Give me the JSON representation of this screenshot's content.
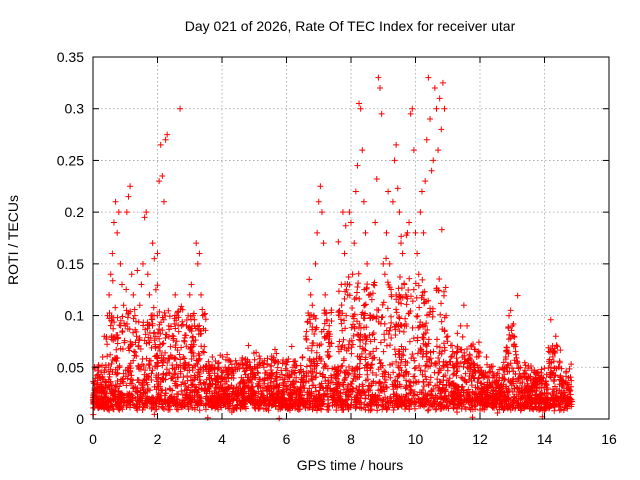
{
  "chart_data": {
    "type": "scatter",
    "title": "Day 021 of 2026, Rate Of TEC Index for receiver utar",
    "xlabel": "GPS time / hours",
    "ylabel": "ROTI / TECUs",
    "xlim": [
      0,
      16
    ],
    "ylim": [
      0,
      0.35
    ],
    "xticks": [
      0,
      2,
      4,
      6,
      8,
      10,
      12,
      14,
      16
    ],
    "xtick_labels": [
      "0",
      "2",
      "4",
      "6",
      "8",
      "10",
      "12",
      "14",
      "16"
    ],
    "yticks": [
      0,
      0.05,
      0.1,
      0.15,
      0.2,
      0.25,
      0.3,
      0.35
    ],
    "ytick_labels": [
      "0",
      "0.05",
      "0.1",
      "0.15",
      "0.2",
      "0.25",
      "0.3",
      "0.35"
    ],
    "grid": true,
    "marker": "plus",
    "color": "#ff0000",
    "series": [
      {
        "name": "ROTI",
        "points": [
          [
            0.05,
            0.03
          ],
          [
            0.1,
            0.02
          ],
          [
            0.15,
            0.05
          ],
          [
            0.2,
            0.04
          ],
          [
            0.25,
            0.025
          ],
          [
            0.3,
            0.06
          ],
          [
            0.35,
            0.08
          ],
          [
            0.4,
            0.05
          ],
          [
            0.45,
            0.1
          ],
          [
            0.5,
            0.12
          ],
          [
            0.55,
            0.14
          ],
          [
            0.6,
            0.16
          ],
          [
            0.65,
            0.19
          ],
          [
            0.7,
            0.21
          ],
          [
            0.75,
            0.18
          ],
          [
            0.8,
            0.2
          ],
          [
            0.85,
            0.15
          ],
          [
            0.9,
            0.13
          ],
          [
            0.95,
            0.11
          ],
          [
            1.0,
            0.09
          ],
          [
            1.05,
            0.2
          ],
          [
            1.1,
            0.215
          ],
          [
            1.15,
            0.225
          ],
          [
            1.2,
            0.14
          ],
          [
            1.25,
            0.12
          ],
          [
            1.3,
            0.1
          ],
          [
            1.35,
            0.08
          ],
          [
            1.4,
            0.07
          ],
          [
            1.45,
            0.11
          ],
          [
            1.5,
            0.13
          ],
          [
            1.55,
            0.15
          ],
          [
            1.6,
            0.195
          ],
          [
            1.65,
            0.2
          ],
          [
            1.7,
            0.14
          ],
          [
            1.75,
            0.12
          ],
          [
            1.8,
            0.1
          ],
          [
            1.85,
            0.17
          ],
          [
            1.9,
            0.155
          ],
          [
            1.95,
            0.125
          ],
          [
            2.0,
            0.16
          ],
          [
            2.05,
            0.23
          ],
          [
            2.1,
            0.265
          ],
          [
            2.15,
            0.235
          ],
          [
            2.2,
            0.21
          ],
          [
            2.25,
            0.27
          ],
          [
            2.3,
            0.275
          ],
          [
            2.35,
            0.09
          ],
          [
            2.4,
            0.07
          ],
          [
            2.45,
            0.06
          ],
          [
            2.5,
            0.08
          ],
          [
            2.55,
            0.12
          ],
          [
            2.6,
            0.1
          ],
          [
            2.65,
            0.05
          ],
          [
            2.7,
            0.3
          ],
          [
            2.75,
            0.09
          ],
          [
            2.8,
            0.06
          ],
          [
            2.85,
            0.05
          ],
          [
            2.9,
            0.09
          ],
          [
            2.95,
            0.1
          ],
          [
            3.0,
            0.12
          ],
          [
            3.05,
            0.13
          ],
          [
            3.1,
            0.1
          ],
          [
            3.15,
            0.09
          ],
          [
            3.2,
            0.17
          ],
          [
            3.25,
            0.15
          ],
          [
            3.3,
            0.16
          ],
          [
            3.35,
            0.12
          ],
          [
            3.4,
            0.1
          ],
          [
            3.45,
            0.07
          ],
          [
            3.5,
            0.05
          ],
          [
            3.6,
            0.04
          ],
          [
            3.7,
            0.06
          ],
          [
            3.8,
            0.03
          ],
          [
            3.9,
            0.05
          ],
          [
            4.0,
            0.04
          ],
          [
            4.1,
            0.05
          ],
          [
            4.2,
            0.03
          ],
          [
            4.3,
            0.04
          ],
          [
            4.4,
            0.05
          ],
          [
            4.5,
            0.03
          ],
          [
            4.6,
            0.04
          ],
          [
            4.7,
            0.035
          ],
          [
            4.8,
            0.05
          ],
          [
            4.9,
            0.03
          ],
          [
            5.0,
            0.04
          ],
          [
            5.1,
            0.045
          ],
          [
            5.2,
            0.03
          ],
          [
            5.3,
            0.05
          ],
          [
            5.4,
            0.04
          ],
          [
            5.5,
            0.035
          ],
          [
            5.6,
            0.03
          ],
          [
            5.7,
            0.045
          ],
          [
            5.8,
            0.04
          ],
          [
            5.9,
            0.035
          ],
          [
            6.0,
            0.03
          ],
          [
            6.1,
            0.04
          ],
          [
            6.2,
            0.05
          ],
          [
            6.3,
            0.04
          ],
          [
            6.4,
            0.045
          ],
          [
            6.5,
            0.06
          ],
          [
            6.6,
            0.08
          ],
          [
            6.7,
            0.1
          ],
          [
            6.75,
            0.12
          ],
          [
            6.8,
            0.11
          ],
          [
            6.85,
            0.1
          ],
          [
            6.9,
            0.15
          ],
          [
            6.95,
            0.18
          ],
          [
            7.0,
            0.21
          ],
          [
            7.05,
            0.225
          ],
          [
            7.1,
            0.2
          ],
          [
            7.15,
            0.17
          ],
          [
            7.2,
            0.12
          ],
          [
            7.25,
            0.08
          ],
          [
            7.3,
            0.06
          ],
          [
            7.4,
            0.04
          ],
          [
            7.5,
            0.05
          ],
          [
            7.6,
            0.07
          ],
          [
            7.7,
            0.13
          ],
          [
            7.75,
            0.2
          ],
          [
            7.8,
            0.16
          ],
          [
            7.85,
            0.1
          ],
          [
            7.9,
            0.12
          ],
          [
            7.95,
            0.2
          ],
          [
            8.0,
            0.19
          ],
          [
            8.05,
            0.14
          ],
          [
            8.1,
            0.17
          ],
          [
            8.15,
            0.22
          ],
          [
            8.2,
            0.245
          ],
          [
            8.25,
            0.305
          ],
          [
            8.3,
            0.3
          ],
          [
            8.35,
            0.26
          ],
          [
            8.4,
            0.21
          ],
          [
            8.45,
            0.18
          ],
          [
            8.5,
            0.15
          ],
          [
            8.55,
            0.12
          ],
          [
            8.6,
            0.1
          ],
          [
            8.7,
            0.13
          ],
          [
            8.75,
            0.19
          ],
          [
            8.8,
            0.232
          ],
          [
            8.85,
            0.33
          ],
          [
            8.9,
            0.32
          ],
          [
            8.95,
            0.295
          ],
          [
            9.0,
            0.15
          ],
          [
            9.05,
            0.14
          ],
          [
            9.1,
            0.18
          ],
          [
            9.15,
            0.22
          ],
          [
            9.2,
            0.15
          ],
          [
            9.25,
            0.12
          ],
          [
            9.3,
            0.21
          ],
          [
            9.35,
            0.25
          ],
          [
            9.4,
            0.265
          ],
          [
            9.45,
            0.223
          ],
          [
            9.5,
            0.2
          ],
          [
            9.55,
            0.17
          ],
          [
            9.6,
            0.16
          ],
          [
            9.65,
            0.13
          ],
          [
            9.7,
            0.12
          ],
          [
            9.75,
            0.18
          ],
          [
            9.8,
            0.19
          ],
          [
            9.85,
            0.295
          ],
          [
            9.9,
            0.3
          ],
          [
            9.95,
            0.26
          ],
          [
            10.0,
            0.18
          ],
          [
            10.05,
            0.16
          ],
          [
            10.1,
            0.14
          ],
          [
            10.15,
            0.2
          ],
          [
            10.2,
            0.22
          ],
          [
            10.25,
            0.18
          ],
          [
            10.3,
            0.23
          ],
          [
            10.35,
            0.27
          ],
          [
            10.4,
            0.33
          ],
          [
            10.45,
            0.29
          ],
          [
            10.5,
            0.24
          ],
          [
            10.55,
            0.25
          ],
          [
            10.6,
            0.32
          ],
          [
            10.65,
            0.3
          ],
          [
            10.7,
            0.26
          ],
          [
            10.75,
            0.31
          ],
          [
            10.8,
            0.28
          ],
          [
            10.85,
            0.325
          ],
          [
            10.9,
            0.3
          ],
          [
            10.95,
            0.1
          ],
          [
            11.0,
            0.08
          ],
          [
            11.1,
            0.06
          ],
          [
            11.2,
            0.05
          ],
          [
            11.3,
            0.07
          ],
          [
            11.4,
            0.09
          ],
          [
            11.5,
            0.11
          ],
          [
            11.6,
            0.09
          ],
          [
            11.7,
            0.05
          ],
          [
            11.8,
            0.04
          ],
          [
            11.9,
            0.06
          ],
          [
            12.0,
            0.05
          ],
          [
            12.1,
            0.04
          ],
          [
            12.2,
            0.06
          ],
          [
            12.3,
            0.05
          ],
          [
            12.4,
            0.04
          ],
          [
            12.5,
            0.03
          ],
          [
            12.6,
            0.04
          ],
          [
            12.7,
            0.05
          ],
          [
            12.8,
            0.06
          ],
          [
            12.9,
            0.1
          ],
          [
            12.95,
            0.105
          ],
          [
            13.0,
            0.09
          ],
          [
            13.05,
            0.08
          ],
          [
            13.1,
            0.07
          ],
          [
            13.2,
            0.05
          ],
          [
            13.3,
            0.04
          ],
          [
            13.4,
            0.03
          ],
          [
            13.5,
            0.04
          ],
          [
            13.6,
            0.03
          ],
          [
            13.7,
            0.035
          ],
          [
            13.8,
            0.04
          ],
          [
            13.9,
            0.03
          ],
          [
            14.0,
            0.025
          ],
          [
            14.1,
            0.03
          ],
          [
            14.2,
            0.05
          ],
          [
            14.3,
            0.065
          ],
          [
            14.35,
            0.08
          ],
          [
            14.4,
            0.07
          ],
          [
            14.45,
            0.05
          ],
          [
            14.5,
            0.04
          ],
          [
            14.6,
            0.03
          ],
          [
            14.7,
            0.035
          ],
          [
            14.8,
            0.02
          ]
        ]
      }
    ]
  }
}
